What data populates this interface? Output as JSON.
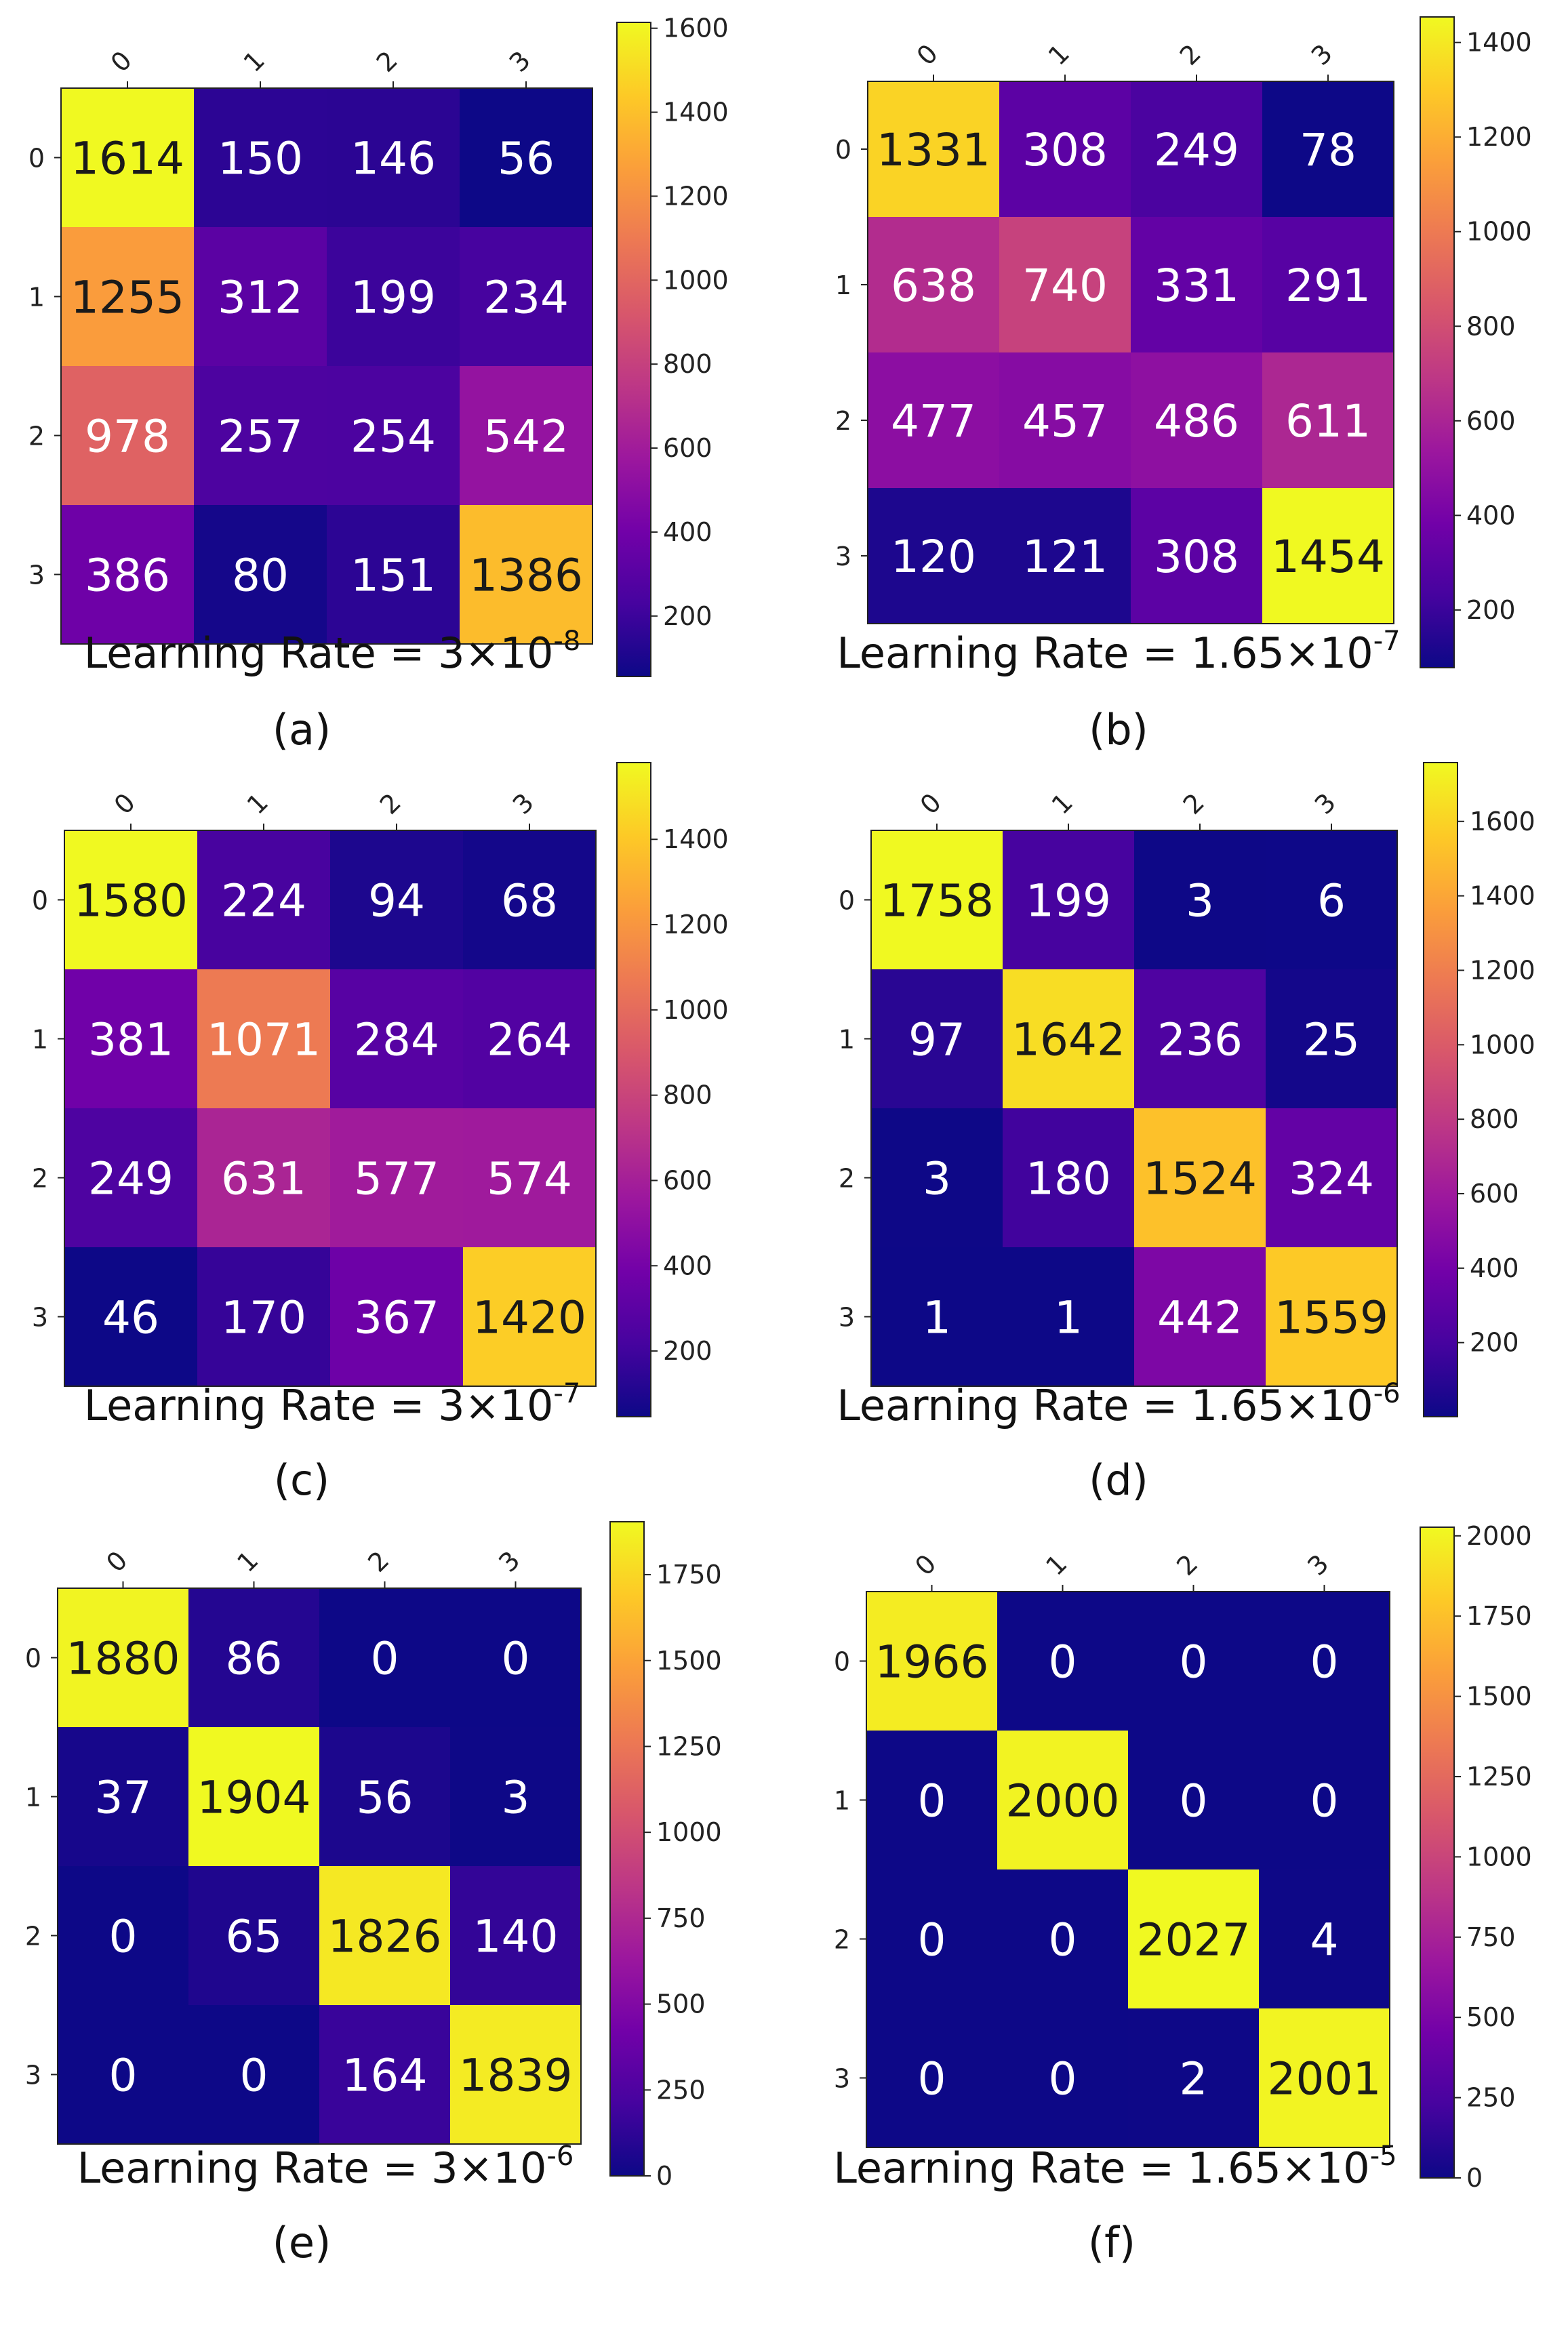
{
  "colormap": [
    "#0d0887",
    "#46039f",
    "#7201a8",
    "#9c179e",
    "#bd3786",
    "#d8576b",
    "#ed7953",
    "#fb9f3a",
    "#fdca26",
    "#f0f921"
  ],
  "text_dark": "#1a1a1a",
  "text_light": "#ffffff",
  "chart_data": [
    {
      "type": "heatmap",
      "panel_label": "(a)",
      "caption_prefix": "Learning Rate = 3×10",
      "caption_exp": "-8",
      "x_ticks": [
        "0",
        "1",
        "2",
        "3"
      ],
      "y_ticks": [
        "0",
        "1",
        "2",
        "3"
      ],
      "values": [
        [
          1614,
          150,
          146,
          56
        ],
        [
          1255,
          312,
          199,
          234
        ],
        [
          978,
          257,
          254,
          542
        ],
        [
          386,
          80,
          151,
          1386
        ]
      ],
      "colorbar_range": [
        56,
        1614
      ],
      "colorbar_ticks": [
        "200",
        "400",
        "600",
        "800",
        "1000",
        "1200",
        "1400",
        "1600"
      ],
      "colorbar_tick_values": [
        200,
        400,
        600,
        800,
        1000,
        1200,
        1400,
        1600
      ]
    },
    {
      "type": "heatmap",
      "panel_label": "(b)",
      "caption_prefix": "Learning Rate = 1.65×10",
      "caption_exp": "-7",
      "x_ticks": [
        "0",
        "1",
        "2",
        "3"
      ],
      "y_ticks": [
        "0",
        "1",
        "2",
        "3"
      ],
      "values": [
        [
          1331,
          308,
          249,
          78
        ],
        [
          638,
          740,
          331,
          291
        ],
        [
          477,
          457,
          486,
          611
        ],
        [
          120,
          121,
          308,
          1454
        ]
      ],
      "colorbar_range": [
        78,
        1454
      ],
      "colorbar_ticks": [
        "200",
        "400",
        "600",
        "800",
        "1000",
        "1200",
        "1400"
      ],
      "colorbar_tick_values": [
        200,
        400,
        600,
        800,
        1000,
        1200,
        1400
      ]
    },
    {
      "type": "heatmap",
      "panel_label": "(c)",
      "caption_prefix": "Learning Rate = 3×10",
      "caption_exp": "-7",
      "x_ticks": [
        "0",
        "1",
        "2",
        "3"
      ],
      "y_ticks": [
        "0",
        "1",
        "2",
        "3"
      ],
      "values": [
        [
          1580,
          224,
          94,
          68
        ],
        [
          381,
          1071,
          284,
          264
        ],
        [
          249,
          631,
          577,
          574
        ],
        [
          46,
          170,
          367,
          1420
        ]
      ],
      "colorbar_range": [
        46,
        1580
      ],
      "colorbar_ticks": [
        "200",
        "400",
        "600",
        "800",
        "1000",
        "1200",
        "1400"
      ],
      "colorbar_tick_values": [
        200,
        400,
        600,
        800,
        1000,
        1200,
        1400
      ]
    },
    {
      "type": "heatmap",
      "panel_label": "(d)",
      "caption_prefix": "Learning Rate = 1.65×10",
      "caption_exp": "-6",
      "x_ticks": [
        "0",
        "1",
        "2",
        "3"
      ],
      "y_ticks": [
        "0",
        "1",
        "2",
        "3"
      ],
      "values": [
        [
          1758,
          199,
          3,
          6
        ],
        [
          97,
          1642,
          236,
          25
        ],
        [
          3,
          180,
          1524,
          324
        ],
        [
          1,
          1,
          442,
          1559
        ]
      ],
      "colorbar_range": [
        1,
        1758
      ],
      "colorbar_ticks": [
        "200",
        "400",
        "600",
        "800",
        "1000",
        "1200",
        "1400",
        "1600"
      ],
      "colorbar_tick_values": [
        200,
        400,
        600,
        800,
        1000,
        1200,
        1400,
        1600
      ]
    },
    {
      "type": "heatmap",
      "panel_label": "(e)",
      "caption_prefix": "Learning Rate = 3×10",
      "caption_exp": "-6",
      "x_ticks": [
        "0",
        "1",
        "2",
        "3"
      ],
      "y_ticks": [
        "0",
        "1",
        "2",
        "3"
      ],
      "values": [
        [
          1880,
          86,
          0,
          0
        ],
        [
          37,
          1904,
          56,
          3
        ],
        [
          0,
          65,
          1826,
          140
        ],
        [
          0,
          0,
          164,
          1839
        ]
      ],
      "colorbar_range": [
        0,
        1904
      ],
      "colorbar_ticks": [
        "0",
        "250",
        "500",
        "750",
        "1000",
        "1250",
        "1500",
        "1750"
      ],
      "colorbar_tick_values": [
        0,
        250,
        500,
        750,
        1000,
        1250,
        1500,
        1750
      ]
    },
    {
      "type": "heatmap",
      "panel_label": "(f)",
      "caption_prefix": "Learning Rate = 1.65×10",
      "caption_exp": "-5",
      "x_ticks": [
        "0",
        "1",
        "2",
        "3"
      ],
      "y_ticks": [
        "0",
        "1",
        "2",
        "3"
      ],
      "values": [
        [
          1966,
          0,
          0,
          0
        ],
        [
          0,
          2000,
          0,
          0
        ],
        [
          0,
          0,
          2027,
          4
        ],
        [
          0,
          0,
          2,
          2001
        ]
      ],
      "colorbar_range": [
        0,
        2027
      ],
      "colorbar_ticks": [
        "0",
        "250",
        "500",
        "750",
        "1000",
        "1250",
        "1500",
        "1750",
        "2000"
      ],
      "colorbar_tick_values": [
        0,
        250,
        500,
        750,
        1000,
        1250,
        1500,
        1750,
        2000
      ]
    }
  ]
}
